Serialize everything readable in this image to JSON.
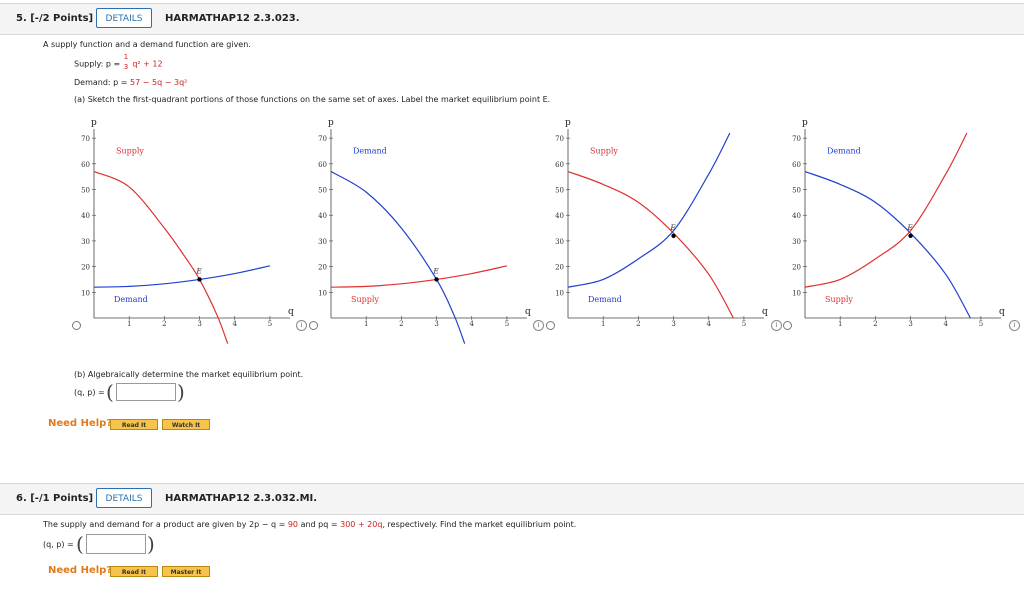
{
  "q5": {
    "number": "5. [-/2 Points]",
    "details": "DETAILS",
    "code": "HARMATHAP12 2.3.023.",
    "intro": "A supply function and a demand function are given.",
    "supply_prefix": "Supply: p =",
    "supply_frac_num": "1",
    "supply_frac_den": "3",
    "supply_rest": "q² + 12",
    "demand_prefix": "Demand: p =",
    "demand_expr": "57 − 5q − 3q²",
    "part_a": "(a) Sketch the first-quadrant portions of those functions on the same set of axes. Label the market equilibrium point E.",
    "part_b": "(b) Algebraically determine the market equilibrium point.",
    "answer_label": "(q, p) =",
    "need_help": "Need Help?",
    "read_it": "Read It",
    "watch_it": "Watch It"
  },
  "q6": {
    "number": "6. [-/1 Points]",
    "details": "DETAILS",
    "code": "HARMATHAP12 2.3.032.MI.",
    "text_a": "The supply and demand for a product are given by 2p − q =",
    "val1": "90",
    "text_b": "and pq =",
    "val2": "300 + 20q",
    "text_c": ", respectively. Find the market equilibrium point.",
    "answer_label": "(q, p) =",
    "need_help": "Need Help?",
    "read_it": "Read It",
    "master_it": "Master It"
  },
  "chart_data": [
    {
      "type": "line",
      "option": "1",
      "yaxis_label": "p",
      "xaxis_label": "q",
      "xlim": [
        0,
        5.4
      ],
      "ylim": [
        0,
        72
      ],
      "xticks": [
        1,
        2,
        3,
        4,
        5
      ],
      "yticks": [
        10,
        20,
        30,
        40,
        50,
        60,
        70
      ],
      "series": [
        {
          "name": "Supply",
          "color": "#e03030",
          "x": [
            0,
            1,
            2,
            2.6,
            3,
            3.5,
            3.8
          ],
          "y": [
            57,
            51,
            35,
            23.5,
            15,
            1,
            -10
          ]
        },
        {
          "name": "Demand",
          "color": "#2040d0",
          "x": [
            0,
            1,
            2,
            3,
            4,
            5
          ],
          "y": [
            12,
            12.3,
            13.3,
            15,
            17.3,
            20.3
          ]
        }
      ],
      "labels": {
        "s": "Supply",
        "d": "Demand",
        "e": "E"
      },
      "equilibrium": {
        "q": 3,
        "p": 15
      }
    },
    {
      "type": "line",
      "option": "2",
      "yaxis_label": "p",
      "xaxis_label": "q",
      "xlim": [
        0,
        5.4
      ],
      "ylim": [
        0,
        72
      ],
      "xticks": [
        1,
        2,
        3,
        4,
        5
      ],
      "yticks": [
        10,
        20,
        30,
        40,
        50,
        60,
        70
      ],
      "series": [
        {
          "name": "Demand",
          "color": "#2040d0",
          "x": [
            0,
            1,
            2,
            3,
            3.5,
            3.8
          ],
          "y": [
            57,
            49,
            35,
            15,
            1,
            -10
          ]
        },
        {
          "name": "Supply",
          "color": "#e03030",
          "x": [
            0,
            1,
            2,
            3,
            4,
            5
          ],
          "y": [
            12,
            12.3,
            13.3,
            15,
            17.3,
            20.3
          ]
        }
      ],
      "labels": {
        "s": "Supply",
        "d": "Demand",
        "e": "E"
      },
      "equilibrium": {
        "q": 3,
        "p": 15
      }
    },
    {
      "type": "line",
      "option": "3",
      "yaxis_label": "p",
      "xaxis_label": "q",
      "xlim": [
        0,
        5.4
      ],
      "ylim": [
        0,
        72
      ],
      "xticks": [
        1,
        2,
        3,
        4,
        5
      ],
      "yticks": [
        10,
        20,
        30,
        40,
        50,
        60,
        70
      ],
      "series": [
        {
          "name": "Supply",
          "color": "#e03030",
          "x": [
            0,
            1,
            2,
            3,
            4,
            4.7
          ],
          "y": [
            57,
            52,
            45,
            33,
            17,
            0
          ]
        },
        {
          "name": "Demand",
          "color": "#2040d0",
          "x": [
            0,
            1,
            2,
            3,
            4,
            4.6
          ],
          "y": [
            12,
            15,
            23,
            34,
            56,
            72
          ]
        }
      ],
      "labels": {
        "s": "Supply",
        "d": "Demand",
        "e": "E"
      },
      "equilibrium": {
        "q": 3,
        "p": 32
      }
    },
    {
      "type": "line",
      "option": "4",
      "yaxis_label": "p",
      "xaxis_label": "q",
      "xlim": [
        0,
        5.4
      ],
      "ylim": [
        0,
        72
      ],
      "xticks": [
        1,
        2,
        3,
        4,
        5
      ],
      "yticks": [
        10,
        20,
        30,
        40,
        50,
        60,
        70
      ],
      "series": [
        {
          "name": "Demand",
          "color": "#2040d0",
          "x": [
            0,
            1,
            2,
            3,
            4,
            4.7
          ],
          "y": [
            57,
            52,
            45,
            33,
            17,
            0
          ]
        },
        {
          "name": "Supply",
          "color": "#e03030",
          "x": [
            0,
            1,
            2,
            3,
            4,
            4.6
          ],
          "y": [
            12,
            15,
            23,
            34,
            56,
            72
          ]
        }
      ],
      "labels": {
        "s": "Supply",
        "d": "Demand",
        "e": "E"
      },
      "equilibrium": {
        "q": 3,
        "p": 32
      }
    }
  ]
}
